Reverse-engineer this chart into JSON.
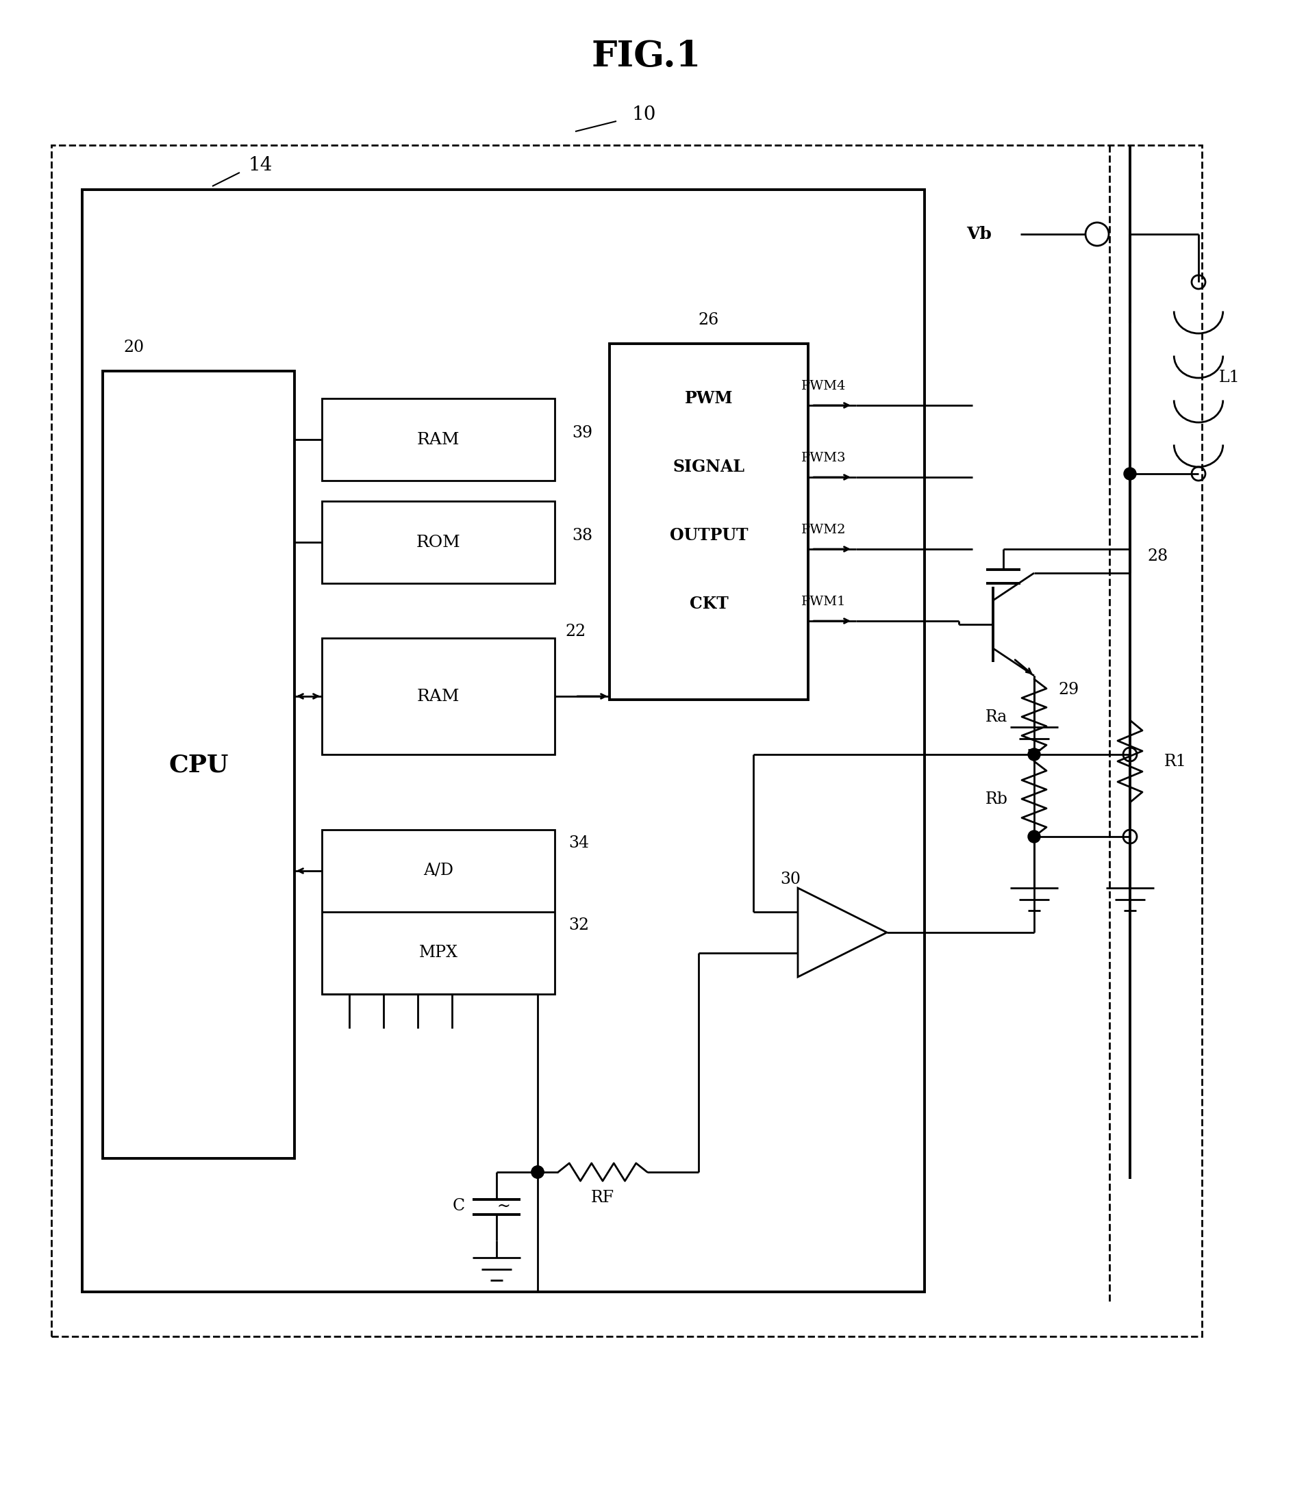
{
  "title": "FIG.1",
  "background": "#ffffff",
  "lw": 2.0,
  "lw_thick": 2.8,
  "fig_label": "10",
  "inner_box_label": "14",
  "cpu_label": "CPU",
  "cpu_ref": "20",
  "ram_top_label": "RAM",
  "ram_top_ref": "39",
  "rom_label": "ROM",
  "rom_ref": "38",
  "ram_mid_label": "RAM",
  "ram_mid_ref": "22",
  "ad_label": "A/D",
  "mpx_label": "MPX",
  "ad_ref": "34",
  "mpx_ref": "32",
  "pwm_label": [
    "PWM",
    "SIGNAL",
    "OUTPUT",
    "CKT"
  ],
  "pwm_ref": "26",
  "pwm4": "PWM4",
  "pwm3": "PWM3",
  "pwm2": "PWM2",
  "pwm1": "PWM1",
  "transistor_ref": "28",
  "node29_ref": "29",
  "Ra_label": "Ra",
  "Rb_label": "Rb",
  "R1_label": "R1",
  "L1_label": "L1",
  "Vb_label": "Vb",
  "amp_ref": "30",
  "C_label": "C",
  "RF_label": "RF"
}
